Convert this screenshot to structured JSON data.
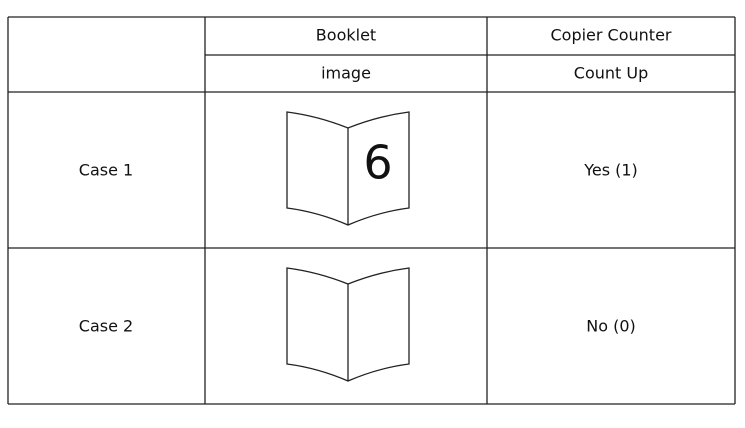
{
  "table": {
    "header": {
      "row1": [
        "Booklet",
        "Copier Counter"
      ],
      "row2": [
        "image",
        "Count Up"
      ]
    },
    "rows": [
      {
        "case": "Case 1",
        "image_text": "6",
        "count": "Yes (1)"
      },
      {
        "case": "Case 2",
        "count": "No (0)"
      }
    ]
  }
}
